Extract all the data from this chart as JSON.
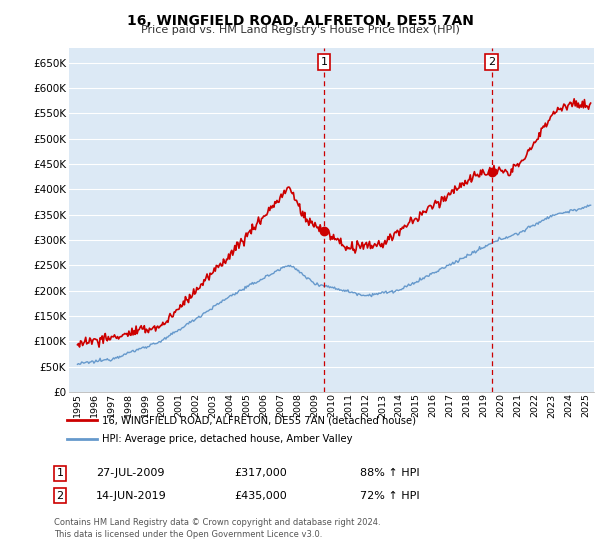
{
  "title": "16, WINGFIELD ROAD, ALFRETON, DE55 7AN",
  "subtitle": "Price paid vs. HM Land Registry's House Price Index (HPI)",
  "legend_line1": "16, WINGFIELD ROAD, ALFRETON, DE55 7AN (detached house)",
  "legend_line2": "HPI: Average price, detached house, Amber Valley",
  "footnote": "Contains HM Land Registry data © Crown copyright and database right 2024.\nThis data is licensed under the Open Government Licence v3.0.",
  "annotation1_label": "1",
  "annotation1_date": "27-JUL-2009",
  "annotation1_price": "£317,000",
  "annotation1_hpi": "88% ↑ HPI",
  "annotation2_label": "2",
  "annotation2_date": "14-JUN-2019",
  "annotation2_price": "£435,000",
  "annotation2_hpi": "72% ↑ HPI",
  "red_color": "#cc0000",
  "blue_color": "#6699cc",
  "background_color": "#dce9f5",
  "ylim": [
    0,
    680000
  ],
  "yticks": [
    0,
    50000,
    100000,
    150000,
    200000,
    250000,
    300000,
    350000,
    400000,
    450000,
    500000,
    550000,
    600000,
    650000
  ],
  "vline1_x": 2009.57,
  "vline2_x": 2019.45,
  "marker1_x": 2009.57,
  "marker1_y": 317000,
  "marker2_x": 2019.45,
  "marker2_y": 435000,
  "xlim_left": 1994.5,
  "xlim_right": 2025.5
}
